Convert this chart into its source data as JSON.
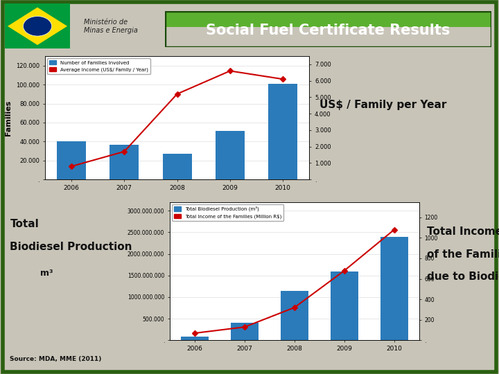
{
  "title": "Social Fuel Certificate Results",
  "title_bg": "#3d8b1e",
  "title_text_color": "#ffffff",
  "bg_color": "#c8c4b8",
  "chart_bg": "#ffffff",
  "border_color": "#2a6010",
  "top_chart": {
    "years": [
      "2006",
      "2007",
      "2008",
      "2009",
      "2010"
    ],
    "families": [
      40000,
      36500,
      27500,
      51000,
      101000
    ],
    "avg_income": [
      800,
      1700,
      5200,
      6600,
      6100
    ],
    "bar_color": "#2b7bba",
    "line_color": "#cc0000",
    "yleft_label": "Families",
    "yleft_ticks": [
      0,
      20000,
      40000,
      60000,
      80000,
      100000,
      120000
    ],
    "yright_ticks": [
      0,
      1000,
      2000,
      3000,
      4000,
      5000,
      6000,
      7000
    ],
    "legend1": "Number of Families Involved",
    "legend2": "Average Income (US$/ Family / Year)",
    "annotation": "US$ / Family per Year"
  },
  "bottom_chart": {
    "years": [
      "2006",
      "2007",
      "2008",
      "2009",
      "2010"
    ],
    "production": [
      90000,
      400000,
      1150000,
      1600000,
      2400000
    ],
    "income": [
      70,
      130,
      320,
      680,
      1080
    ],
    "bar_color": "#2b7bba",
    "line_color": "#cc0000",
    "yleft_label_line1": "Total",
    "yleft_label_line2": "Biodiesel Production",
    "yleft_label_line3": "m³",
    "yleft_ticks": [
      0,
      500000,
      1000000,
      1500000,
      2000000,
      2500000,
      3000000
    ],
    "yright_ticks": [
      0,
      200,
      400,
      600,
      800,
      1000,
      1200
    ],
    "legend1": "Total Biodiesel Production (m³)",
    "legend2": "Total Income of the Families (Million R$)",
    "annotation_line1": "Total Income",
    "annotation_line2": "of the Families",
    "annotation_line3": "due to Biodiesel"
  },
  "source_text": "Source: MDA, MME (2011)",
  "ministerio_text": "Ministério de\nMinas e Energia"
}
